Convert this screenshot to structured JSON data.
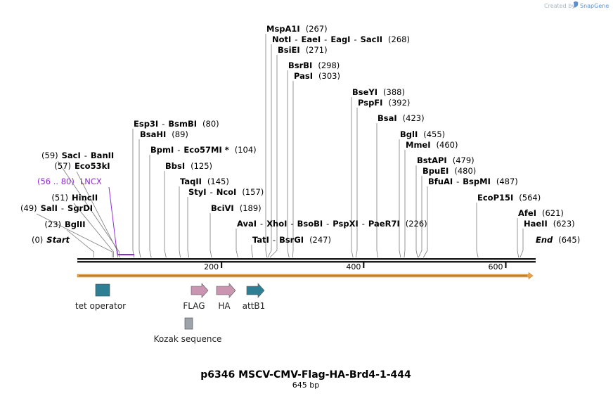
{
  "credit": {
    "prefix": "Created by",
    "brand": "SnapGene"
  },
  "title": "p6346 MSCV-CMV-Flag-HA-Brd4-1-444",
  "subtitle": "645 bp",
  "sequence_length": 645,
  "ticks": [
    {
      "bp": 200,
      "label": "200"
    },
    {
      "bp": 400,
      "label": "400"
    },
    {
      "bp": 600,
      "label": "600"
    }
  ],
  "sites": [
    {
      "bp": 0,
      "parts": [
        [
          "(0)",
          "pos"
        ],
        [
          "Start",
          "term"
        ]
      ]
    },
    {
      "bp": 23,
      "parts": [
        [
          "(23)",
          "pos"
        ],
        [
          "BglII",
          "enz"
        ]
      ]
    },
    {
      "bp": 49,
      "parts": [
        [
          "(49)",
          "pos"
        ],
        [
          "SalI",
          "enz"
        ],
        [
          "-",
          "pos"
        ],
        [
          "SgrDI",
          "enz"
        ]
      ]
    },
    {
      "bp": 51,
      "parts": [
        [
          "(51)",
          "pos"
        ],
        [
          "HincII",
          "enz"
        ]
      ]
    },
    {
      "bp": 57,
      "parts": [
        [
          "(57)",
          "pos"
        ],
        [
          "Eco53kI",
          "enz"
        ]
      ]
    },
    {
      "bp": 59,
      "parts": [
        [
          "(59)",
          "pos"
        ],
        [
          "SacI",
          "enz"
        ],
        [
          "-",
          "pos"
        ],
        [
          "BanII",
          "enz"
        ]
      ]
    },
    {
      "bp": 80,
      "parts": [
        [
          "Esp3I",
          "enz"
        ],
        [
          "-",
          "pos"
        ],
        [
          "BsmBI",
          "enz"
        ],
        [
          "(80)",
          "pos"
        ]
      ]
    },
    {
      "bp": 89,
      "parts": [
        [
          "BsaHI",
          "enz"
        ],
        [
          "(89)",
          "pos"
        ]
      ]
    },
    {
      "bp": 104,
      "parts": [
        [
          "BpmI",
          "enz"
        ],
        [
          "-",
          "pos"
        ],
        [
          "Eco57MI *",
          "enz"
        ],
        [
          "(104)",
          "pos"
        ]
      ]
    },
    {
      "bp": 125,
      "parts": [
        [
          "BbsI",
          "enz"
        ],
        [
          "(125)",
          "pos"
        ]
      ]
    },
    {
      "bp": 145,
      "parts": [
        [
          "TaqII",
          "enz"
        ],
        [
          "(145)",
          "pos"
        ]
      ]
    },
    {
      "bp": 157,
      "parts": [
        [
          "StyI",
          "enz"
        ],
        [
          "-",
          "pos"
        ],
        [
          "NcoI",
          "enz"
        ],
        [
          "(157)",
          "pos"
        ]
      ]
    },
    {
      "bp": 189,
      "parts": [
        [
          "BciVI",
          "enz"
        ],
        [
          "(189)",
          "pos"
        ]
      ]
    },
    {
      "bp": 226,
      "parts": [
        [
          "AvaI",
          "enz"
        ],
        [
          "-",
          "pos"
        ],
        [
          "XhoI",
          "enz"
        ],
        [
          "-",
          "pos"
        ],
        [
          "BsoBI",
          "enz"
        ],
        [
          "-",
          "pos"
        ],
        [
          "PspXI",
          "enz"
        ],
        [
          "-",
          "pos"
        ],
        [
          "PaeR7I",
          "enz"
        ],
        [
          "(226)",
          "pos"
        ]
      ]
    },
    {
      "bp": 247,
      "parts": [
        [
          "TatI",
          "enz"
        ],
        [
          "-",
          "pos"
        ],
        [
          "BsrGI",
          "enz"
        ],
        [
          "(247)",
          "pos"
        ]
      ]
    },
    {
      "bp": 267,
      "parts": [
        [
          "MspA1I",
          "enz"
        ],
        [
          "(267)",
          "pos"
        ]
      ]
    },
    {
      "bp": 268,
      "parts": [
        [
          "NotI",
          "enz"
        ],
        [
          "-",
          "pos"
        ],
        [
          "EaeI",
          "enz"
        ],
        [
          "-",
          "pos"
        ],
        [
          "EagI",
          "enz"
        ],
        [
          "-",
          "pos"
        ],
        [
          "SacII",
          "enz"
        ],
        [
          "(268)",
          "pos"
        ]
      ]
    },
    {
      "bp": 271,
      "parts": [
        [
          "BsiEI",
          "enz"
        ],
        [
          "(271)",
          "pos"
        ]
      ]
    },
    {
      "bp": 298,
      "parts": [
        [
          "BsrBI",
          "enz"
        ],
        [
          "(298)",
          "pos"
        ]
      ]
    },
    {
      "bp": 303,
      "parts": [
        [
          "PasI",
          "enz"
        ],
        [
          "(303)",
          "pos"
        ]
      ]
    },
    {
      "bp": 388,
      "parts": [
        [
          "BseYI",
          "enz"
        ],
        [
          "(388)",
          "pos"
        ]
      ]
    },
    {
      "bp": 392,
      "parts": [
        [
          "PspFI",
          "enz"
        ],
        [
          "(392)",
          "pos"
        ]
      ]
    },
    {
      "bp": 423,
      "parts": [
        [
          "BsaI",
          "enz"
        ],
        [
          "(423)",
          "pos"
        ]
      ]
    },
    {
      "bp": 455,
      "parts": [
        [
          "BglI",
          "enz"
        ],
        [
          "(455)",
          "pos"
        ]
      ]
    },
    {
      "bp": 460,
      "parts": [
        [
          "MmeI",
          "enz"
        ],
        [
          "(460)",
          "pos"
        ]
      ]
    },
    {
      "bp": 479,
      "parts": [
        [
          "BstAPI",
          "enz"
        ],
        [
          "(479)",
          "pos"
        ]
      ]
    },
    {
      "bp": 480,
      "parts": [
        [
          "BpuEI",
          "enz"
        ],
        [
          "(480)",
          "pos"
        ]
      ]
    },
    {
      "bp": 487,
      "parts": [
        [
          "BfuAI",
          "enz"
        ],
        [
          "-",
          "pos"
        ],
        [
          "BspMI",
          "enz"
        ],
        [
          "(487)",
          "pos"
        ]
      ]
    },
    {
      "bp": 564,
      "parts": [
        [
          "EcoP15I",
          "enz"
        ],
        [
          "(564)",
          "pos"
        ]
      ]
    },
    {
      "bp": 621,
      "parts": [
        [
          "AfeI",
          "enz"
        ],
        [
          "(621)",
          "pos"
        ]
      ]
    },
    {
      "bp": 623,
      "parts": [
        [
          "HaeII",
          "enz"
        ],
        [
          "(623)",
          "pos"
        ]
      ]
    },
    {
      "bp": 645,
      "parts": [
        [
          "End",
          "term"
        ],
        [
          "(645)",
          "pos"
        ]
      ]
    }
  ],
  "primer_feature": {
    "range": "(56 .. 80)",
    "name": "LNCX",
    "start": 56,
    "end": 80,
    "color": "#8e2ad6"
  },
  "features": [
    {
      "name": "tet operator",
      "kind": "box",
      "color": "#2f7f94",
      "start": 26,
      "end": 45
    },
    {
      "name": "FLAG",
      "kind": "arrow",
      "color": "#c995b0",
      "start": 160,
      "end": 184
    },
    {
      "name": "HA",
      "kind": "arrow",
      "color": "#c995b0",
      "start": 197,
      "end": 224
    },
    {
      "name": "attB1",
      "kind": "arrow",
      "color": "#2f7f94",
      "start": 238,
      "end": 262
    },
    {
      "name": "Kozak sequence",
      "kind": "box",
      "color": "#9ea3ab",
      "start": 152,
      "end": 162
    }
  ],
  "orf": {
    "color": "#e8a14a",
    "start": 0,
    "end": 645
  }
}
